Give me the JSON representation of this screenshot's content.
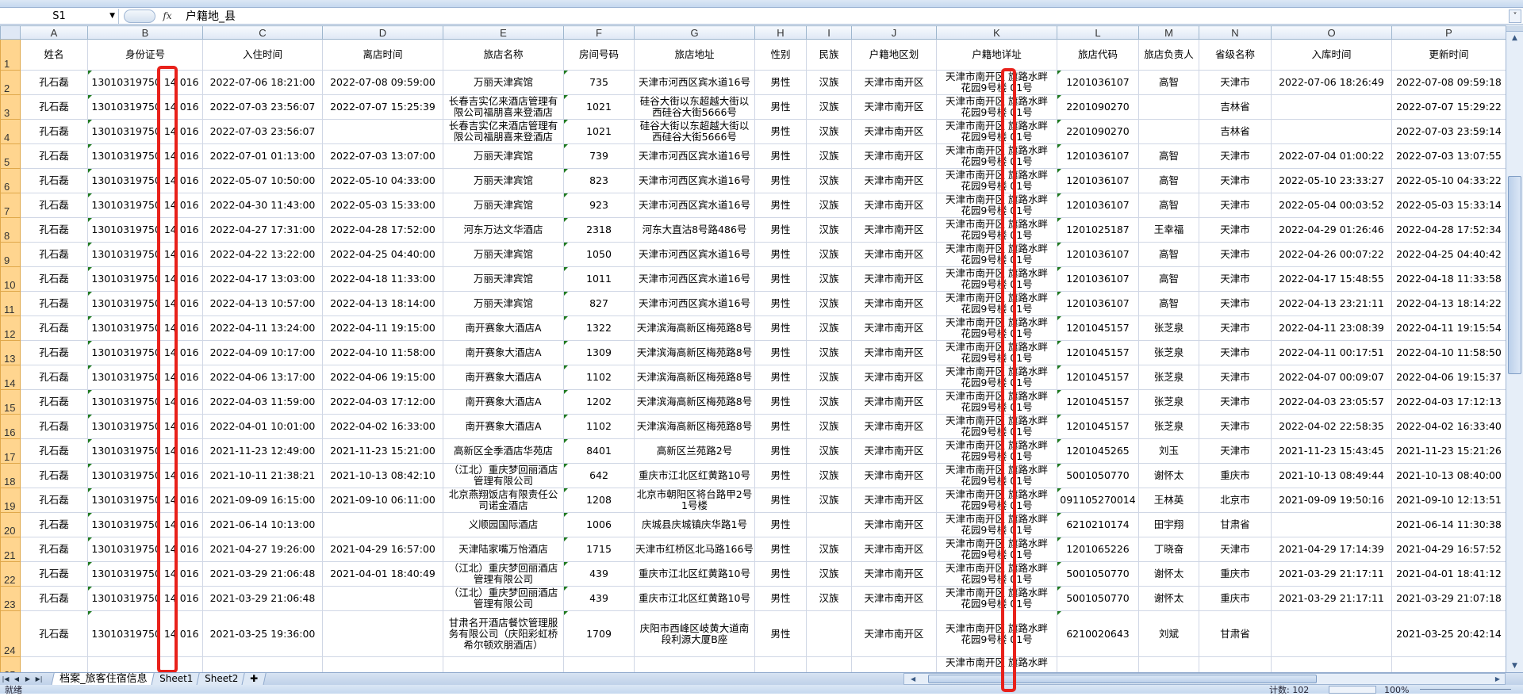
{
  "formula_bar": {
    "name_box": "S1",
    "fx_label": "fx",
    "formula": "户籍地_县"
  },
  "columns": [
    "A",
    "B",
    "C",
    "D",
    "E",
    "F",
    "G",
    "H",
    "I",
    "J",
    "K",
    "L",
    "M",
    "N",
    "O",
    "P"
  ],
  "headers": [
    "姓名",
    "身份证号",
    "入住时间",
    "离店时间",
    "旅店名称",
    "房间号码",
    "旅店地址",
    "性别",
    "民族",
    "户籍地区划",
    "户籍地详址",
    "旅店代码",
    "旅店负责人",
    "省级名称",
    "入库时间",
    "更新时间"
  ],
  "rows": [
    {
      "num": "2",
      "cells": [
        "孔石磊",
        "13010319750 14 016",
        "2022-07-06 18:21:00",
        "2022-07-08 09:59:00",
        "万丽天津宾馆",
        "735",
        "天津市河西区宾水道16号",
        "男性",
        "汉族",
        "天津市南开区",
        "天津市南开区 旗路水畔\n花园9号楼 01号",
        "1201036107",
        "高智",
        "天津市",
        "2022-07-06 18:26:49",
        "2022-07-08 09:59:18"
      ]
    },
    {
      "num": "3",
      "cells": [
        "孔石磊",
        "13010319750 14 016",
        "2022-07-03 23:56:07",
        "2022-07-07 15:25:39",
        "长春吉实亿来酒店管理有限公司福朋喜来登酒店",
        "1021",
        "硅谷大街以东超越大街以西硅谷大街5666号",
        "男性",
        "汉族",
        "天津市南开区",
        "天津市南开区 旗路水畔\n花园9号楼 01号",
        "2201090270",
        "",
        "吉林省",
        "",
        "2022-07-07 15:29:22"
      ]
    },
    {
      "num": "4",
      "cells": [
        "孔石磊",
        "13010319750 14 016",
        "2022-07-03 23:56:07",
        "",
        "长春吉实亿来酒店管理有限公司福朋喜来登酒店",
        "1021",
        "硅谷大街以东超越大街以西硅谷大街5666号",
        "男性",
        "汉族",
        "天津市南开区",
        "天津市南开区 旗路水畔\n花园9号楼 01号",
        "2201090270",
        "",
        "吉林省",
        "",
        "2022-07-03 23:59:14"
      ]
    },
    {
      "num": "5",
      "cells": [
        "孔石磊",
        "13010319750 14 016",
        "2022-07-01 01:13:00",
        "2022-07-03 13:07:00",
        "万丽天津宾馆",
        "739",
        "天津市河西区宾水道16号",
        "男性",
        "汉族",
        "天津市南开区",
        "天津市南开区 旗路水畔\n花园9号楼 01号",
        "1201036107",
        "高智",
        "天津市",
        "2022-07-04 01:00:22",
        "2022-07-03 13:07:55"
      ]
    },
    {
      "num": "6",
      "cells": [
        "孔石磊",
        "13010319750 14 016",
        "2022-05-07 10:50:00",
        "2022-05-10 04:33:00",
        "万丽天津宾馆",
        "823",
        "天津市河西区宾水道16号",
        "男性",
        "汉族",
        "天津市南开区",
        "天津市南开区 旗路水畔\n花园9号楼 01号",
        "1201036107",
        "高智",
        "天津市",
        "2022-05-10 23:33:27",
        "2022-05-10 04:33:22"
      ]
    },
    {
      "num": "7",
      "cells": [
        "孔石磊",
        "13010319750 14 016",
        "2022-04-30 11:43:00",
        "2022-05-03 15:33:00",
        "万丽天津宾馆",
        "923",
        "天津市河西区宾水道16号",
        "男性",
        "汉族",
        "天津市南开区",
        "天津市南开区 旗路水畔\n花园9号楼 01号",
        "1201036107",
        "高智",
        "天津市",
        "2022-05-04 00:03:52",
        "2022-05-03 15:33:14"
      ]
    },
    {
      "num": "8",
      "cells": [
        "孔石磊",
        "13010319750 14 016",
        "2022-04-27 17:31:00",
        "2022-04-28 17:52:00",
        "河东万达文华酒店",
        "2318",
        "河东大直沽8号路486号",
        "男性",
        "汉族",
        "天津市南开区",
        "天津市南开区 旗路水畔\n花园9号楼 01号",
        "1201025187",
        "王幸福",
        "天津市",
        "2022-04-29 01:26:46",
        "2022-04-28 17:52:34"
      ]
    },
    {
      "num": "9",
      "cells": [
        "孔石磊",
        "13010319750 14 016",
        "2022-04-22 13:22:00",
        "2022-04-25 04:40:00",
        "万丽天津宾馆",
        "1050",
        "天津市河西区宾水道16号",
        "男性",
        "汉族",
        "天津市南开区",
        "天津市南开区 旗路水畔\n花园9号楼 01号",
        "1201036107",
        "高智",
        "天津市",
        "2022-04-26 00:07:22",
        "2022-04-25 04:40:42"
      ]
    },
    {
      "num": "10",
      "cells": [
        "孔石磊",
        "13010319750 14 016",
        "2022-04-17 13:03:00",
        "2022-04-18 11:33:00",
        "万丽天津宾馆",
        "1011",
        "天津市河西区宾水道16号",
        "男性",
        "汉族",
        "天津市南开区",
        "天津市南开区 旗路水畔\n花园9号楼 01号",
        "1201036107",
        "高智",
        "天津市",
        "2022-04-17 15:48:55",
        "2022-04-18 11:33:58"
      ]
    },
    {
      "num": "11",
      "cells": [
        "孔石磊",
        "13010319750 14 016",
        "2022-04-13 10:57:00",
        "2022-04-13 18:14:00",
        "万丽天津宾馆",
        "827",
        "天津市河西区宾水道16号",
        "男性",
        "汉族",
        "天津市南开区",
        "天津市南开区 旗路水畔\n花园9号楼 01号",
        "1201036107",
        "高智",
        "天津市",
        "2022-04-13 23:21:11",
        "2022-04-13 18:14:22"
      ]
    },
    {
      "num": "12",
      "cells": [
        "孔石磊",
        "13010319750 14 016",
        "2022-04-11 13:24:00",
        "2022-04-11 19:15:00",
        "南开赛象大酒店A",
        "1322",
        "天津滨海高新区梅苑路8号",
        "男性",
        "汉族",
        "天津市南开区",
        "天津市南开区 旗路水畔\n花园9号楼 01号",
        "1201045157",
        "张芝泉",
        "天津市",
        "2022-04-11 23:08:39",
        "2022-04-11 19:15:54"
      ]
    },
    {
      "num": "13",
      "cells": [
        "孔石磊",
        "13010319750 14 016",
        "2022-04-09 10:17:00",
        "2022-04-10 11:58:00",
        "南开赛象大酒店A",
        "1309",
        "天津滨海高新区梅苑路8号",
        "男性",
        "汉族",
        "天津市南开区",
        "天津市南开区 旗路水畔\n花园9号楼 01号",
        "1201045157",
        "张芝泉",
        "天津市",
        "2022-04-11 00:17:51",
        "2022-04-10 11:58:50"
      ]
    },
    {
      "num": "14",
      "cells": [
        "孔石磊",
        "13010319750 14 016",
        "2022-04-06 13:17:00",
        "2022-04-06 19:15:00",
        "南开赛象大酒店A",
        "1102",
        "天津滨海高新区梅苑路8号",
        "男性",
        "汉族",
        "天津市南开区",
        "天津市南开区 旗路水畔\n花园9号楼 01号",
        "1201045157",
        "张芝泉",
        "天津市",
        "2022-04-07 00:09:07",
        "2022-04-06 19:15:37"
      ]
    },
    {
      "num": "15",
      "cells": [
        "孔石磊",
        "13010319750 14 016",
        "2022-04-03 11:59:00",
        "2022-04-03 17:12:00",
        "南开赛象大酒店A",
        "1202",
        "天津滨海高新区梅苑路8号",
        "男性",
        "汉族",
        "天津市南开区",
        "天津市南开区 旗路水畔\n花园9号楼 01号",
        "1201045157",
        "张芝泉",
        "天津市",
        "2022-04-03 23:05:57",
        "2022-04-03 17:12:13"
      ]
    },
    {
      "num": "16",
      "cells": [
        "孔石磊",
        "13010319750 14 016",
        "2022-04-01 10:01:00",
        "2022-04-02 16:33:00",
        "南开赛象大酒店A",
        "1102",
        "天津滨海高新区梅苑路8号",
        "男性",
        "汉族",
        "天津市南开区",
        "天津市南开区 旗路水畔\n花园9号楼 01号",
        "1201045157",
        "张芝泉",
        "天津市",
        "2022-04-02 22:58:35",
        "2022-04-02 16:33:40"
      ]
    },
    {
      "num": "17",
      "cells": [
        "孔石磊",
        "13010319750 14 016",
        "2021-11-23 12:49:00",
        "2021-11-23 15:21:00",
        "高新区全季酒店华苑店",
        "8401",
        "高新区兰苑路2号",
        "男性",
        "汉族",
        "天津市南开区",
        "天津市南开区 旗路水畔\n花园9号楼 01号",
        "1201045265",
        "刘玉",
        "天津市",
        "2021-11-23 15:43:45",
        "2021-11-23 15:21:26"
      ]
    },
    {
      "num": "18",
      "cells": [
        "孔石磊",
        "13010319750 14 016",
        "2021-10-11 21:38:21",
        "2021-10-13 08:42:10",
        "（江北）重庆梦回丽酒店管理有限公司",
        "642",
        "重庆市江北区红黄路10号",
        "男性",
        "汉族",
        "天津市南开区",
        "天津市南开区 旗路水畔\n花园9号楼 01号",
        "5001050770",
        "谢怀太",
        "重庆市",
        "2021-10-13 08:49:44",
        "2021-10-13 08:40:00"
      ]
    },
    {
      "num": "19",
      "cells": [
        "孔石磊",
        "13010319750 14 016",
        "2021-09-09 16:15:00",
        "2021-09-10 06:11:00",
        "北京燕翔饭店有限责任公司诺金酒店",
        "1208",
        "北京市朝阳区将台路甲2号1号楼",
        "男性",
        "汉族",
        "天津市南开区",
        "天津市南开区 旗路水畔\n花园9号楼 01号",
        "091105270014",
        "王林英",
        "北京市",
        "2021-09-09 19:50:16",
        "2021-09-10 12:13:51"
      ]
    },
    {
      "num": "20",
      "cells": [
        "孔石磊",
        "13010319750 14 016",
        "2021-06-14 10:13:00",
        "",
        "义顺园国际酒店",
        "1006",
        "庆城县庆城镇庆华路1号",
        "男性",
        "",
        "天津市南开区",
        "天津市南开区 旗路水畔\n花园9号楼 01号",
        "6210210174",
        "田宇翔",
        "甘肃省",
        "",
        "2021-06-14 11:30:38"
      ]
    },
    {
      "num": "21",
      "cells": [
        "孔石磊",
        "13010319750 14 016",
        "2021-04-27 19:26:00",
        "2021-04-29 16:57:00",
        "天津陆家嘴万怡酒店",
        "1715",
        "天津市红桥区北马路166号",
        "男性",
        "汉族",
        "天津市南开区",
        "天津市南开区 旗路水畔\n花园9号楼 01号",
        "1201065226",
        "丁晓奋",
        "天津市",
        "2021-04-29 17:14:39",
        "2021-04-29 16:57:52"
      ]
    },
    {
      "num": "22",
      "cells": [
        "孔石磊",
        "13010319750 14 016",
        "2021-03-29 21:06:48",
        "2021-04-01 18:40:49",
        "（江北）重庆梦回丽酒店管理有限公司",
        "439",
        "重庆市江北区红黄路10号",
        "男性",
        "汉族",
        "天津市南开区",
        "天津市南开区 旗路水畔\n花园9号楼 01号",
        "5001050770",
        "谢怀太",
        "重庆市",
        "2021-03-29 21:17:11",
        "2021-04-01 18:41:12"
      ]
    },
    {
      "num": "23",
      "cells": [
        "孔石磊",
        "13010319750 14 016",
        "2021-03-29 21:06:48",
        "",
        "（江北）重庆梦回丽酒店管理有限公司",
        "439",
        "重庆市江北区红黄路10号",
        "男性",
        "汉族",
        "天津市南开区",
        "天津市南开区 旗路水畔\n花园9号楼 01号",
        "5001050770",
        "谢怀太",
        "重庆市",
        "2021-03-29 21:17:11",
        "2021-03-29 21:07:18"
      ]
    },
    {
      "num": "24",
      "cells": [
        "孔石磊",
        "13010319750 14 016",
        "2021-03-25 19:36:00",
        "",
        "甘肃名开酒店餐饮管理服务有限公司（庆阳彩虹桥希尔顿欢朋酒店）",
        "1709",
        "庆阳市西峰区岐黄大道南段利源大厦B座",
        "男性",
        "",
        "天津市南开区",
        "天津市南开区 旗路水畔\n花园9号楼 01号",
        "6210020643",
        "刘斌",
        "甘肃省",
        "",
        "2021-03-25 20:42:14"
      ]
    },
    {
      "num": "25",
      "cells": [
        "",
        "",
        "",
        "",
        "",
        "",
        "",
        "",
        "",
        "",
        "天津市南开区 旗路水畔",
        "",
        "",
        "",
        "",
        ""
      ]
    }
  ],
  "sheet_tabs": [
    "档案_旅客住宿信息",
    "Sheet1",
    "Sheet2"
  ],
  "active_sheet": "档案_旅客住宿信息",
  "status_bar": {
    "ready": "就绪",
    "count": "计数: 102",
    "zoom": "100%"
  },
  "colors": {
    "highlight_box": "#e8211b",
    "row_header": "#ffd58f",
    "text_number_flag": "#1f7a1f"
  }
}
